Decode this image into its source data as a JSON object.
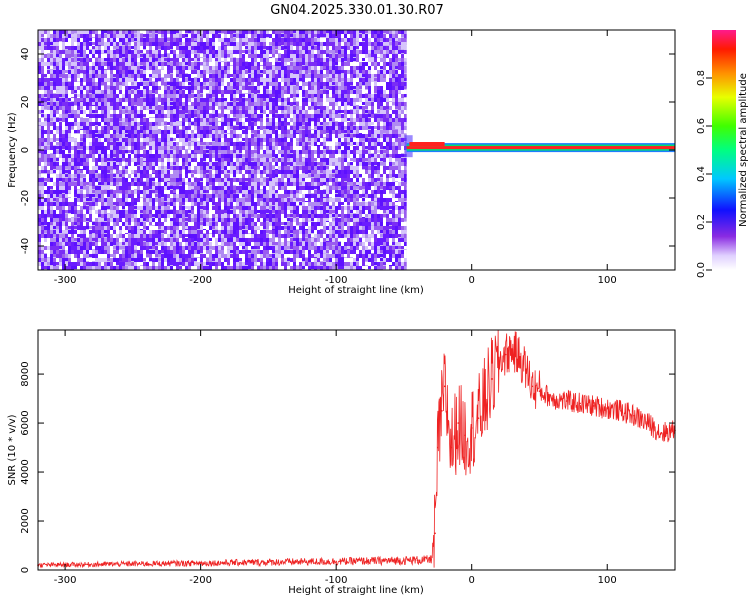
{
  "title": "GN04.2025.330.01.30.R07",
  "chart_data": [
    {
      "type": "heatmap",
      "xlabel": "Height of straight line (km)",
      "ylabel": "Frequency (Hz)",
      "xlim": [
        -320,
        150
      ],
      "ylim": [
        -50,
        50
      ],
      "xticks": [
        -300,
        -200,
        -100,
        0,
        100
      ],
      "yticks": [
        -40,
        -20,
        0,
        20,
        40
      ],
      "noise_region_x": [
        -320,
        -48
      ],
      "signal_line": {
        "x": [
          -48,
          150
        ],
        "frequency_hz": [
          2,
          0
        ]
      },
      "colorbar": {
        "label": "Normalized spectral amplitude",
        "range": [
          0,
          1
        ],
        "ticks": [
          0.0,
          0.2,
          0.4,
          0.6,
          0.8
        ]
      }
    },
    {
      "type": "line",
      "xlabel": "Height of straight line (km)",
      "ylabel": "SNR (10 * v/v)",
      "xlim": [
        -320,
        150
      ],
      "ylim": [
        0,
        9800
      ],
      "xticks": [
        -300,
        -200,
        -100,
        0,
        100
      ],
      "yticks": [
        0,
        2000,
        4000,
        6000,
        8000
      ],
      "series": [
        {
          "color": "#ee2222",
          "x": [
            -320,
            -250,
            -200,
            -150,
            -100,
            -60,
            -40,
            -30,
            -27,
            -25,
            -22,
            -20,
            -15,
            -10,
            -5,
            0,
            5,
            10,
            15,
            20,
            25,
            30,
            35,
            40,
            45,
            50,
            60,
            70,
            80,
            90,
            100,
            110,
            120,
            130,
            140,
            150
          ],
          "y": [
            200,
            250,
            280,
            320,
            350,
            380,
            400,
            420,
            1500,
            5000,
            6500,
            7500,
            5000,
            6000,
            5500,
            5800,
            6200,
            7000,
            7800,
            8500,
            8800,
            9000,
            8700,
            8200,
            7500,
            7300,
            7000,
            6900,
            6800,
            6700,
            6600,
            6500,
            6300,
            6000,
            5600,
            5700
          ]
        }
      ]
    }
  ]
}
